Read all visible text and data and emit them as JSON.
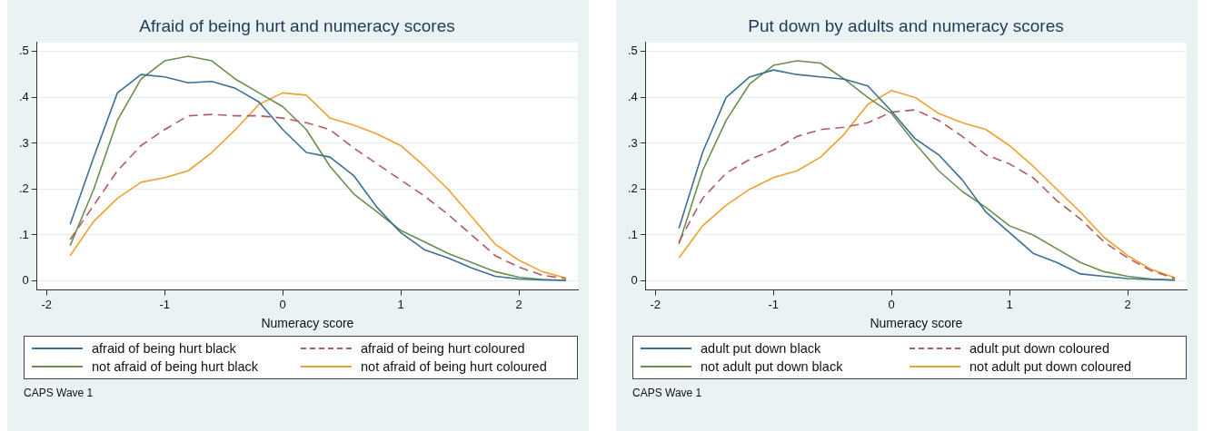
{
  "chart_data": [
    {
      "type": "line",
      "title": "Afraid of being hurt and numeracy scores",
      "xlabel": "Numeracy score",
      "x": [
        -1.8,
        -1.6,
        -1.4,
        -1.2,
        -1.0,
        -0.8,
        -0.6,
        -0.4,
        -0.2,
        0,
        0.2,
        0.4,
        0.6,
        0.8,
        1.0,
        1.2,
        1.4,
        1.6,
        1.8,
        2.0,
        2.2,
        2.4
      ],
      "series": [
        {
          "name": "afraid of being hurt black",
          "color": "#3d6f96",
          "values": [
            0.123,
            0.27,
            0.41,
            0.45,
            0.445,
            0.432,
            0.435,
            0.42,
            0.39,
            0.33,
            0.28,
            0.27,
            0.23,
            0.16,
            0.105,
            0.068,
            0.05,
            0.028,
            0.01,
            0.004,
            0.002,
            0.001
          ]
        },
        {
          "name": "afraid of being hurt coloured",
          "color": "#b05a66",
          "line_style": "dashed",
          "values": [
            0.09,
            0.165,
            0.24,
            0.295,
            0.33,
            0.36,
            0.363,
            0.36,
            0.36,
            0.355,
            0.345,
            0.33,
            0.29,
            0.255,
            0.22,
            0.185,
            0.145,
            0.1,
            0.055,
            0.03,
            0.012,
            0.005
          ]
        },
        {
          "name": "not afraid of being hurt black",
          "color": "#6b8e4e",
          "values": [
            0.077,
            0.2,
            0.35,
            0.44,
            0.48,
            0.49,
            0.48,
            0.44,
            0.41,
            0.38,
            0.33,
            0.25,
            0.19,
            0.15,
            0.11,
            0.085,
            0.06,
            0.04,
            0.02,
            0.008,
            0.003,
            0.001
          ]
        },
        {
          "name": "not afraid of being hurt coloured",
          "color": "#f0a030",
          "values": [
            0.055,
            0.13,
            0.18,
            0.215,
            0.225,
            0.24,
            0.28,
            0.33,
            0.385,
            0.41,
            0.405,
            0.355,
            0.34,
            0.32,
            0.295,
            0.25,
            0.2,
            0.14,
            0.08,
            0.045,
            0.02,
            0.006
          ]
        }
      ],
      "xlim": [
        -2.08,
        2.5
      ],
      "xticks": [
        -2,
        -1,
        0,
        1,
        2
      ],
      "ylim": [
        -0.02,
        0.52
      ],
      "yticks": [
        0,
        {
          "value": 0.1,
          "label": ".1"
        },
        {
          "value": 0.2,
          "label": ".2"
        },
        {
          "value": 0.3,
          "label": ".3"
        },
        {
          "value": 0.4,
          "label": ".4"
        },
        {
          "value": 0.5,
          "label": ".5"
        }
      ],
      "grid": "y",
      "legend": "bottom",
      "marker": "none",
      "annotations": [
        "CAPS Wave 1"
      ]
    },
    {
      "type": "line",
      "title": "Put down by adults and numeracy scores",
      "xlabel": "Numeracy score",
      "x": [
        -1.8,
        -1.6,
        -1.4,
        -1.2,
        -1.0,
        -0.8,
        -0.6,
        -0.4,
        -0.2,
        0,
        0.2,
        0.4,
        0.6,
        0.8,
        1.0,
        1.2,
        1.4,
        1.6,
        1.8,
        2.0,
        2.2,
        2.4
      ],
      "series": [
        {
          "name": "adult put down black",
          "color": "#3d6f96",
          "values": [
            0.115,
            0.28,
            0.4,
            0.445,
            0.46,
            0.45,
            0.445,
            0.44,
            0.425,
            0.37,
            0.31,
            0.275,
            0.22,
            0.15,
            0.105,
            0.06,
            0.04,
            0.015,
            0.01,
            0.005,
            0.003,
            0.002
          ]
        },
        {
          "name": "adult put down coloured",
          "color": "#b05a66",
          "line_style": "dashed",
          "values": [
            0.085,
            0.18,
            0.235,
            0.265,
            0.285,
            0.315,
            0.33,
            0.335,
            0.345,
            0.368,
            0.373,
            0.35,
            0.315,
            0.275,
            0.255,
            0.225,
            0.175,
            0.135,
            0.085,
            0.05,
            0.022,
            0.005
          ]
        },
        {
          "name": "not adult put down black",
          "color": "#6b8e4e",
          "values": [
            0.08,
            0.24,
            0.35,
            0.43,
            0.47,
            0.48,
            0.475,
            0.44,
            0.4,
            0.365,
            0.3,
            0.24,
            0.195,
            0.16,
            0.12,
            0.1,
            0.07,
            0.04,
            0.02,
            0.01,
            0.004,
            0.001
          ]
        },
        {
          "name": "not adult put down coloured",
          "color": "#f0a030",
          "values": [
            0.05,
            0.12,
            0.165,
            0.2,
            0.225,
            0.24,
            0.27,
            0.32,
            0.385,
            0.415,
            0.4,
            0.365,
            0.345,
            0.33,
            0.295,
            0.25,
            0.2,
            0.15,
            0.095,
            0.055,
            0.025,
            0.007
          ]
        }
      ],
      "xlim": [
        -2.08,
        2.5
      ],
      "xticks": [
        -2,
        -1,
        0,
        1,
        2
      ],
      "ylim": [
        -0.02,
        0.52
      ],
      "yticks": [
        0,
        {
          "value": 0.1,
          "label": ".1"
        },
        {
          "value": 0.2,
          "label": ".2"
        },
        {
          "value": 0.3,
          "label": ".3"
        },
        {
          "value": 0.4,
          "label": ".4"
        },
        {
          "value": 0.5,
          "label": ".5"
        }
      ],
      "grid": "y",
      "legend": "bottom",
      "marker": "none",
      "annotations": [
        "CAPS Wave 1"
      ]
    }
  ]
}
